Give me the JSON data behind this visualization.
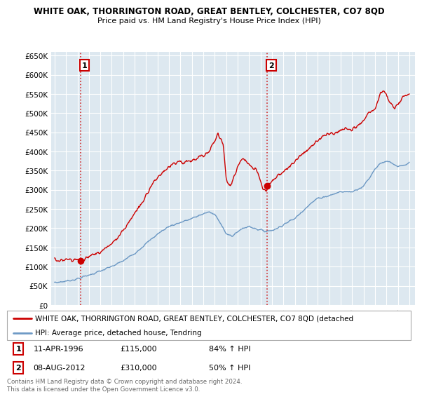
{
  "title": "WHITE OAK, THORRINGTON ROAD, GREAT BENTLEY, COLCHESTER, CO7 8QD",
  "subtitle": "Price paid vs. HM Land Registry's House Price Index (HPI)",
  "legend_line1": "WHITE OAK, THORRINGTON ROAD, GREAT BENTLEY, COLCHESTER, CO7 8QD (detached",
  "legend_line2": "HPI: Average price, detached house, Tendring",
  "annotation1_date": "11-APR-1996",
  "annotation1_price": "£115,000",
  "annotation1_hpi": "84% ↑ HPI",
  "annotation2_date": "08-AUG-2012",
  "annotation2_price": "£310,000",
  "annotation2_hpi": "50% ↑ HPI",
  "footer": "Contains HM Land Registry data © Crown copyright and database right 2024.\nThis data is licensed under the Open Government Licence v3.0.",
  "red_color": "#cc0000",
  "blue_color": "#5588bb",
  "bg_color": "#dde8f0",
  "ylim": [
    0,
    660000
  ],
  "yticks": [
    0,
    50000,
    100000,
    150000,
    200000,
    250000,
    300000,
    350000,
    400000,
    450000,
    500000,
    550000,
    600000,
    650000
  ],
  "sale1_x": 1996.28,
  "sale1_y": 115000,
  "sale2_x": 2012.6,
  "sale2_y": 310000,
  "vline1_x": 1996.28,
  "vline2_x": 2012.6,
  "xlim_left": 1993.7,
  "xlim_right": 2025.5
}
